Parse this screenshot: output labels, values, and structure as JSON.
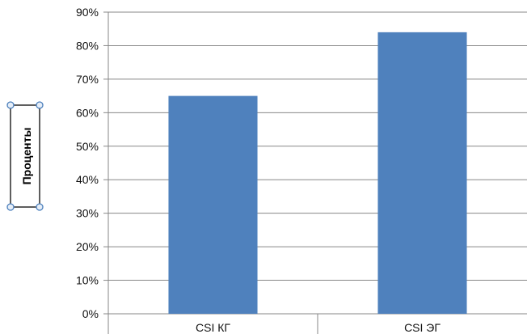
{
  "chart_data": {
    "type": "bar",
    "categories": [
      "CSI КГ",
      "CSI ЭГ"
    ],
    "values": [
      65,
      84
    ],
    "value_format": "percent",
    "ylabel": "Проценты",
    "xlabel": "",
    "ylim": [
      0,
      90
    ],
    "y_ticks": [
      "0%",
      "10%",
      "20%",
      "30%",
      "40%",
      "50%",
      "60%",
      "70%",
      "80%",
      "90%"
    ],
    "grid": true,
    "legend": "none",
    "bar_color": "#4F81BD",
    "grid_color": "#878787",
    "ylabel_selected": true,
    "selection_handle_color": "#4A7EBB"
  }
}
